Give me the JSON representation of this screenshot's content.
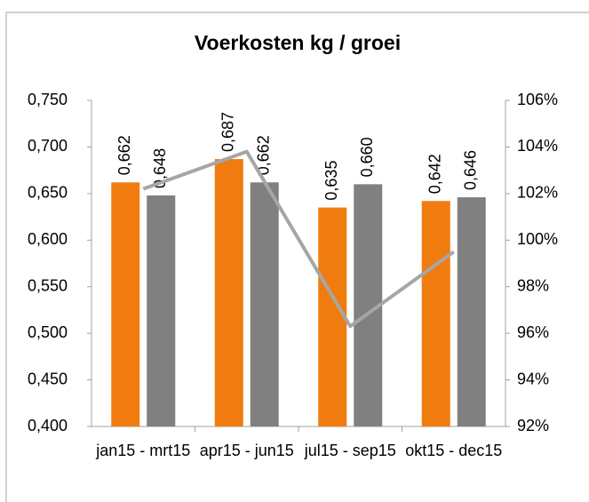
{
  "chart_data": {
    "type": "bar",
    "title": "Voerkosten kg / groei",
    "categories": [
      "jan15 - mrt15",
      "apr15 - jun15",
      "jul15 - sep15",
      "okt15 - dec15"
    ],
    "series": [
      {
        "color": "#f07c0f",
        "values": [
          0.662,
          0.687,
          0.635,
          0.642
        ],
        "value_labels": [
          "0,662",
          "0,687",
          "0,635",
          "0,642"
        ]
      },
      {
        "color": "#808080",
        "values": [
          0.648,
          0.662,
          0.66,
          0.646
        ],
        "value_labels": [
          "0,648",
          "0,662",
          "0,660",
          "0,646"
        ]
      },
      {
        "type": "line",
        "axis": "y2",
        "color": "#a6a6a6",
        "values": [
          102.2,
          103.8,
          96.3,
          99.5
        ]
      }
    ],
    "ylim": [
      0.4,
      0.75
    ],
    "yticks": [
      {
        "value": 0.4,
        "label": "0,400"
      },
      {
        "value": 0.45,
        "label": "0,450"
      },
      {
        "value": 0.5,
        "label": "0,500"
      },
      {
        "value": 0.55,
        "label": "0,550"
      },
      {
        "value": 0.6,
        "label": "0,600"
      },
      {
        "value": 0.65,
        "label": "0,650"
      },
      {
        "value": 0.7,
        "label": "0,700"
      },
      {
        "value": 0.75,
        "label": "0,750"
      }
    ],
    "y2lim": [
      92,
      106
    ],
    "y2ticks": [
      {
        "value": 92,
        "label": "92%"
      },
      {
        "value": 94,
        "label": "94%"
      },
      {
        "value": 96,
        "label": "96%"
      },
      {
        "value": 98,
        "label": "98%"
      },
      {
        "value": 100,
        "label": "100%"
      },
      {
        "value": 102,
        "label": "102%"
      },
      {
        "value": 104,
        "label": "104%"
      },
      {
        "value": 106,
        "label": "106%"
      }
    ]
  }
}
